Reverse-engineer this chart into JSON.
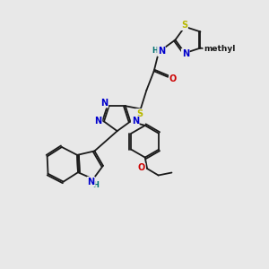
{
  "bg_color": "#e8e8e8",
  "bond_color": "#1a1a1a",
  "atom_colors": {
    "N": "#0000cc",
    "S": "#b8b800",
    "O": "#cc0000",
    "H": "#007070",
    "C": "#1a1a1a"
  },
  "font_size": 7.0,
  "dbo": 0.06
}
